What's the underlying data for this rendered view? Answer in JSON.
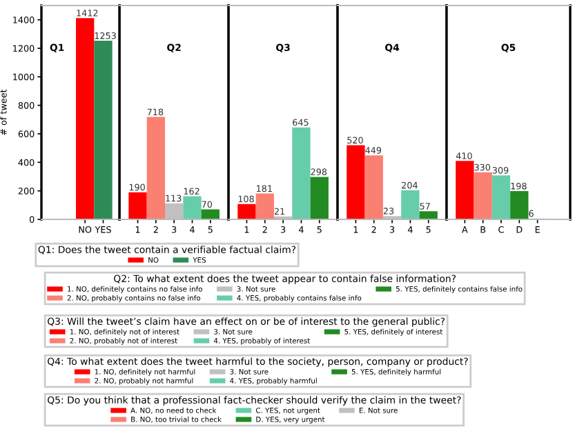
{
  "chart_data": [
    {
      "type": "bar",
      "title": "Q1",
      "ylabel": "# of tweet",
      "categories": [
        "NO",
        "YES"
      ],
      "ylim": [
        0,
        1500
      ],
      "yticks": [
        0,
        200,
        400,
        600,
        800,
        1000,
        1200,
        1400
      ],
      "data_labels": true,
      "legend": "bottom",
      "legend_title": "Q1: Does the tweet contain a verifiable factual claim?",
      "series": [
        {
          "name": "NO",
          "color": "#ff0000",
          "values": [
            1412,
            null
          ]
        },
        {
          "name": "YES",
          "color": "#2e8b57",
          "values": [
            null,
            1253
          ]
        }
      ]
    },
    {
      "type": "bar",
      "title": "Q2",
      "categories": [
        "1",
        "2",
        "3",
        "4",
        "5"
      ],
      "ylim": [
        0,
        1500
      ],
      "yticks": [
        0,
        200,
        400,
        600,
        800,
        1000,
        1200,
        1400
      ],
      "tick_labels": "x",
      "data_labels": true,
      "legend": "bottom",
      "legend_title": "Q2: To what extent does the tweet appear to contain false information?",
      "series": [
        {
          "name": "1. NO, definitely contains no false info",
          "color": "#ff0000",
          "values": [
            190,
            null,
            null,
            null,
            null
          ]
        },
        {
          "name": "2. NO, probably contains no false info",
          "color": "#fa8072",
          "values": [
            null,
            718,
            null,
            null,
            null
          ]
        },
        {
          "name": "3. Not sure",
          "color": "#c0c0c0",
          "values": [
            null,
            null,
            113,
            null,
            null
          ]
        },
        {
          "name": "4. YES, probably contains false info",
          "color": "#66cdaa",
          "values": [
            null,
            null,
            null,
            162,
            null
          ]
        },
        {
          "name": "5. YES, definitely contains false info",
          "color": "#228b22",
          "values": [
            null,
            null,
            null,
            null,
            70
          ]
        }
      ]
    },
    {
      "type": "bar",
      "title": "Q3",
      "categories": [
        "1",
        "2",
        "3",
        "4",
        "5"
      ],
      "ylim": [
        0,
        1500
      ],
      "yticks": [
        0,
        200,
        400,
        600,
        800,
        1000,
        1200,
        1400
      ],
      "tick_labels": "x",
      "data_labels": true,
      "legend": "bottom",
      "legend_title": "Q3: Will the tweet’s claim have an effect on or be of interest to the general public?",
      "series": [
        {
          "name": "1. NO, definitely not of interest",
          "color": "#ff0000",
          "values": [
            108,
            null,
            null,
            null,
            null
          ]
        },
        {
          "name": "2. NO, probably not of interest",
          "color": "#fa8072",
          "values": [
            null,
            181,
            null,
            null,
            null
          ]
        },
        {
          "name": "3. Not sure",
          "color": "#c0c0c0",
          "values": [
            null,
            null,
            21,
            null,
            null
          ]
        },
        {
          "name": "4. YES, probably of interest",
          "color": "#66cdaa",
          "values": [
            null,
            null,
            null,
            645,
            null
          ]
        },
        {
          "name": "5. YES, definitely of interest",
          "color": "#228b22",
          "values": [
            null,
            null,
            null,
            null,
            298
          ]
        }
      ]
    },
    {
      "type": "bar",
      "title": "Q4",
      "categories": [
        "1",
        "2",
        "3",
        "4",
        "5"
      ],
      "ylim": [
        0,
        1500
      ],
      "yticks": [
        0,
        200,
        400,
        600,
        800,
        1000,
        1200,
        1400
      ],
      "tick_labels": "x",
      "data_labels": true,
      "legend": "bottom",
      "legend_title": "Q4: To what extent does the tweet harmful to the society, person, company or product?",
      "series": [
        {
          "name": "1. NO, definitely not harmful",
          "color": "#ff0000",
          "values": [
            520,
            null,
            null,
            null,
            null
          ]
        },
        {
          "name": "2. NO, probably not harmful",
          "color": "#fa8072",
          "values": [
            null,
            449,
            null,
            null,
            null
          ]
        },
        {
          "name": "3. Not sure",
          "color": "#c0c0c0",
          "values": [
            null,
            null,
            23,
            null,
            null
          ]
        },
        {
          "name": "4. YES, probably harmful",
          "color": "#66cdaa",
          "values": [
            null,
            null,
            null,
            204,
            null
          ]
        },
        {
          "name": "5. YES, definitely harmful",
          "color": "#228b22",
          "values": [
            null,
            null,
            null,
            null,
            57
          ]
        }
      ]
    },
    {
      "type": "bar",
      "title": "Q5",
      "categories": [
        "A",
        "B",
        "C",
        "D",
        "E"
      ],
      "ylim": [
        0,
        1500
      ],
      "yticks": [
        0,
        200,
        400,
        600,
        800,
        1000,
        1200,
        1400
      ],
      "tick_labels": "x",
      "data_labels": true,
      "legend": "bottom",
      "legend_title": "Q5: Do you think that a professional fact-checker should verify the claim in the tweet?",
      "series": [
        {
          "name": "A. NO, no need to check",
          "color": "#ff0000",
          "values": [
            410,
            null,
            null,
            null,
            null
          ]
        },
        {
          "name": "B. NO, too trivial to check",
          "color": "#fa8072",
          "values": [
            null,
            330,
            null,
            null,
            null
          ]
        },
        {
          "name": "C. YES, not urgent",
          "color": "#66cdaa",
          "values": [
            null,
            null,
            309,
            null,
            null
          ]
        },
        {
          "name": "D. YES, very urgent",
          "color": "#228b22",
          "values": [
            null,
            null,
            null,
            198,
            null
          ]
        },
        {
          "name": "E. Not sure",
          "color": "#c0c0c0",
          "values": [
            null,
            null,
            null,
            null,
            6
          ]
        }
      ]
    }
  ]
}
